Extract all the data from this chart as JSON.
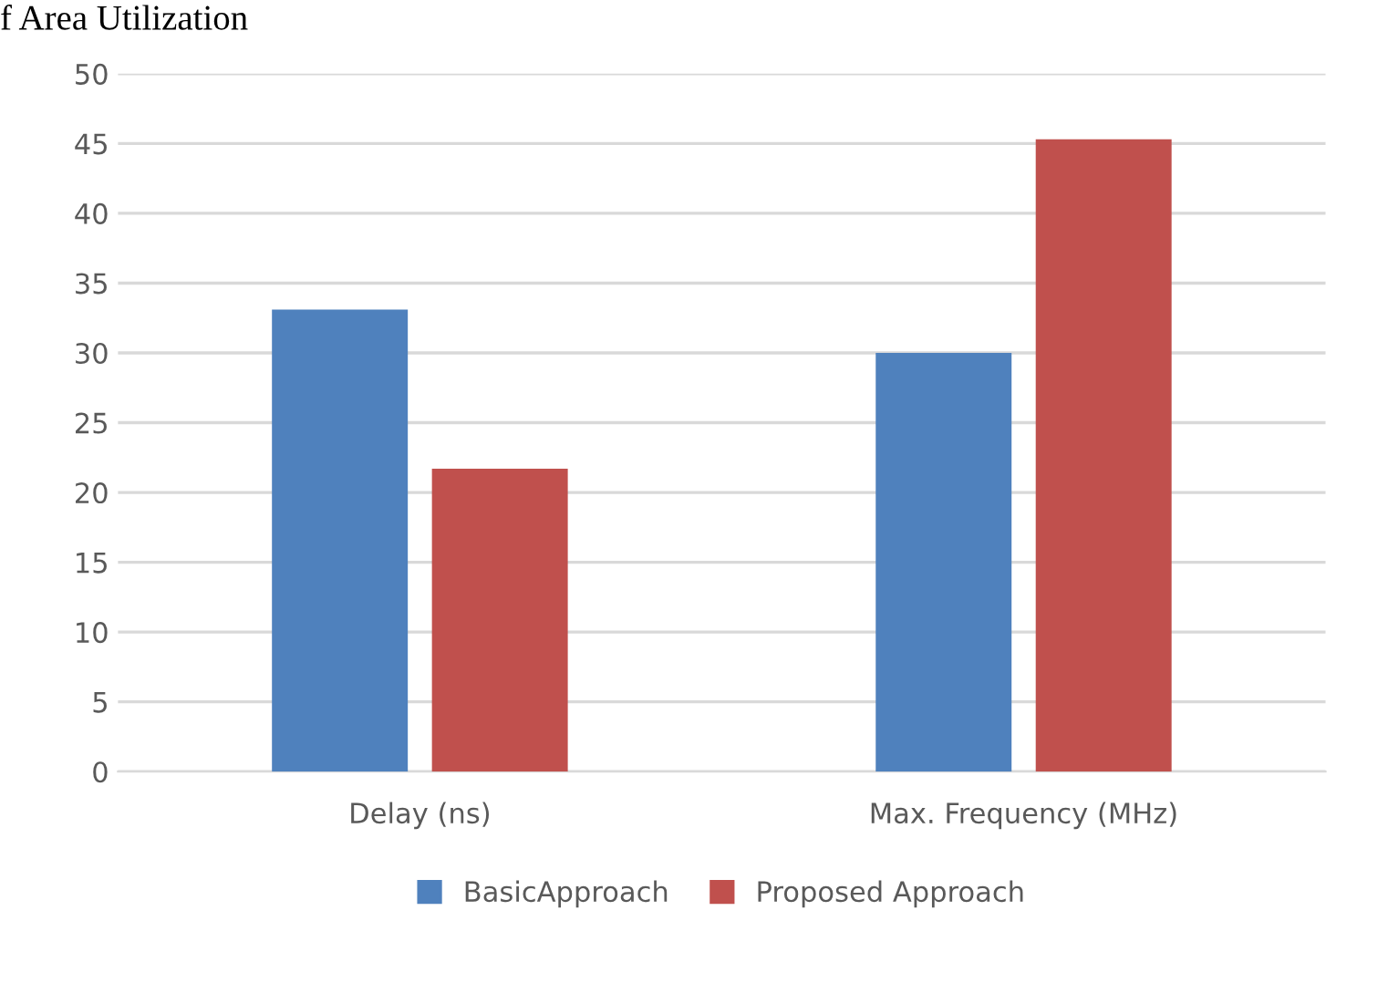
{
  "chart_data": {
    "type": "bar",
    "title": "f Area Utilization",
    "categories": [
      "Delay (ns)",
      "Max. Frequency (MHz)"
    ],
    "series": [
      {
        "name": "BasicApproach",
        "color": "#4f81bd",
        "values": [
          33.1,
          30
        ]
      },
      {
        "name": "Proposed Approach",
        "color": "#c0504d",
        "values": [
          21.7,
          45.3
        ]
      }
    ],
    "ylim": [
      0,
      50
    ],
    "yticks": [
      0,
      5,
      10,
      15,
      20,
      25,
      30,
      35,
      40,
      45,
      50
    ],
    "grid": "y",
    "legend": "bottom"
  }
}
